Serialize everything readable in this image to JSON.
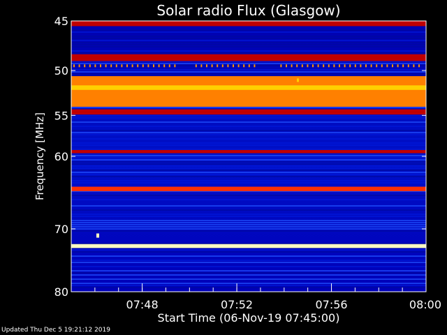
{
  "chart_data": {
    "type": "heatmap",
    "title": "Solar radio Flux (Glasgow)",
    "xlabel": "Start Time (06-Nov-19 07:45:00)",
    "ylabel": "Frequency [MHz]",
    "x_ticks": [
      "07:48",
      "07:52",
      "07:56",
      "08:00"
    ],
    "x_tick_minutes": [
      3,
      7,
      11,
      15
    ],
    "x_range_minutes": [
      0,
      15
    ],
    "y_ticks": [
      45,
      50,
      55,
      60,
      70,
      80
    ],
    "y_scale": "log",
    "y_range_mhz": [
      45,
      80
    ],
    "grid": false,
    "colormap": [
      "#000060",
      "#0000c8",
      "#2040ff",
      "#8020a0",
      "#c00000",
      "#ff3000",
      "#ff8000",
      "#ffd000",
      "#ffffc0"
    ],
    "bands": [
      {
        "freq_min": 45,
        "freq_max": 45.5,
        "level": 0.55
      },
      {
        "freq_min": 48.3,
        "freq_max": 49.0,
        "level": 0.45
      },
      {
        "freq_min": 50.6,
        "freq_max": 54.0,
        "level": 0.78
      },
      {
        "freq_min": 51.6,
        "freq_max": 52.1,
        "level": 0.92
      },
      {
        "freq_min": 54.3,
        "freq_max": 54.9,
        "level": 0.55
      },
      {
        "freq_min": 59.2,
        "freq_max": 59.6,
        "level": 0.5
      },
      {
        "freq_min": 64.0,
        "freq_max": 64.6,
        "level": 0.6
      },
      {
        "freq_min": 72.3,
        "freq_max": 72.9,
        "level": 0.95
      }
    ]
  },
  "footer": "Updated Thu Dec  5 19:21:12 2019"
}
